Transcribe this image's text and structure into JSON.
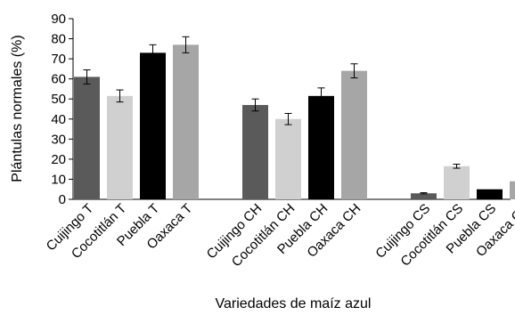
{
  "chart_data": {
    "type": "bar",
    "ylabel": "Plántulas normales (%)",
    "xlabel": "Variedades de maíz azul",
    "ylim": [
      0,
      90
    ],
    "yticks": [
      0,
      10,
      20,
      30,
      40,
      50,
      60,
      70,
      80,
      90
    ],
    "grid": false,
    "legend": "none",
    "groups": [
      {
        "bars": [
          {
            "label": "Cuijingo T",
            "value": 61,
            "error": 3.5,
            "color": "#5a5a5a"
          },
          {
            "label": "Cocotitlán T",
            "value": 51.5,
            "error": 3,
            "color": "#d0d0d0"
          },
          {
            "label": "Puebla T",
            "value": 73,
            "error": 4,
            "color": "#000000"
          },
          {
            "label": "Oaxaca T",
            "value": 77,
            "error": 4,
            "color": "#a6a6a6"
          }
        ]
      },
      {
        "bars": [
          {
            "label": "Cuijingo CH",
            "value": 47,
            "error": 3,
            "color": "#5a5a5a"
          },
          {
            "label": "Cocotitlán CH",
            "value": 40,
            "error": 2.8,
            "color": "#d0d0d0"
          },
          {
            "label": "Puebla CH",
            "value": 51.5,
            "error": 4,
            "color": "#000000"
          },
          {
            "label": "Oaxaca CH",
            "value": 64,
            "error": 3.5,
            "color": "#a6a6a6"
          }
        ]
      },
      {
        "bars": [
          {
            "label": "Cuijingo CS",
            "value": 3,
            "error": 0.3,
            "color": "#5a5a5a"
          },
          {
            "label": "Cocotitlán CS",
            "value": 16.5,
            "error": 1,
            "color": "#d0d0d0"
          },
          {
            "label": "Puebla CS",
            "value": 5,
            "error": 0,
            "color": "#000000"
          },
          {
            "label": "Oaxaca CS",
            "value": 9,
            "error": 0.5,
            "color": "#a6a6a6"
          }
        ]
      }
    ]
  }
}
